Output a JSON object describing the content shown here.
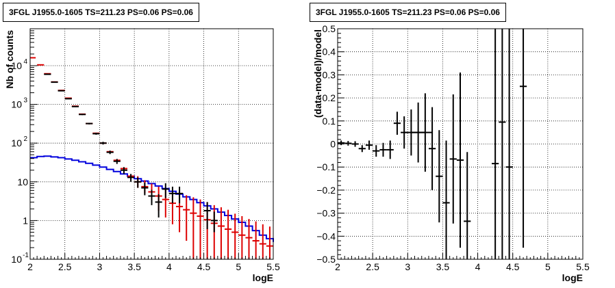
{
  "chart_data": [
    {
      "type": "line",
      "title": "3FGL J1955.0-1605 TS=211.23 PS=0.06 PS=0.06",
      "xlabel": "logE",
      "ylabel": "Nb of counts",
      "xlim": [
        2,
        5.5
      ],
      "ylim": [
        0.1,
        90000
      ],
      "yscale": "log",
      "grid": true,
      "x_ticks": [
        "2",
        "2.5",
        "3",
        "3.5",
        "4",
        "4.5",
        "5",
        "5.5"
      ],
      "y_ticks": [
        {
          "value": 0.1,
          "label": "10",
          "exp": "-1"
        },
        {
          "value": 1,
          "label": "1",
          "exp": ""
        },
        {
          "value": 10,
          "label": "10",
          "exp": ""
        },
        {
          "value": 100,
          "label": "10",
          "exp": "2"
        },
        {
          "value": 1000,
          "label": "10",
          "exp": "3"
        },
        {
          "value": 10000,
          "label": "10",
          "exp": "4"
        }
      ],
      "colors": {
        "data": "#000000",
        "model_total": "#dd0000",
        "source": "#0000dd"
      },
      "bin_edges": [
        2.0,
        2.1,
        2.2,
        2.3,
        2.4,
        2.5,
        2.6,
        2.7,
        2.8,
        2.9,
        3.0,
        3.1,
        3.2,
        3.3,
        3.4,
        3.5,
        3.6,
        3.7,
        3.8,
        3.9,
        4.0,
        4.1,
        4.2,
        4.3,
        4.4,
        4.5,
        4.6,
        4.7,
        4.8,
        4.9,
        5.0,
        5.1,
        5.2,
        5.3,
        5.4,
        5.5
      ],
      "series": [
        {
          "style": "source",
          "values": [
            42,
            45,
            46,
            44,
            42,
            39,
            36,
            33,
            30,
            27,
            24,
            21,
            18.5,
            16,
            14,
            12,
            10.5,
            9,
            7.8,
            6.7,
            5.7,
            4.8,
            4.1,
            3.5,
            2.9,
            2.4,
            2.0,
            1.65,
            1.35,
            1.1,
            0.9,
            0.72,
            0.55,
            0.42,
            0.34,
            0.28
          ]
        },
        {
          "style": "model_total",
          "x": [
            2.03,
            2.15,
            2.25,
            2.35,
            2.45,
            2.55,
            2.65,
            2.75,
            2.85,
            2.95,
            3.05,
            3.15,
            3.25,
            3.35,
            3.45,
            3.55,
            3.65,
            3.75,
            3.85,
            3.95,
            4.05,
            4.15,
            4.25,
            4.35,
            4.45,
            4.55,
            4.65,
            4.75,
            4.85,
            4.95,
            5.05,
            5.15,
            5.25,
            5.35,
            5.45
          ],
          "y": [
            16000,
            10500,
            6200,
            3800,
            2300,
            1450,
            900,
            560,
            320,
            180,
            100,
            60,
            36,
            22,
            14,
            10,
            7.5,
            5.5,
            4.3,
            3.5,
            2.8,
            2.3,
            1.9,
            1.55,
            1.3,
            1.05,
            0.85,
            0.72,
            0.6,
            0.5,
            0.42,
            0.36,
            0.3,
            0.25,
            0.22
          ],
          "err_low": [
            null,
            null,
            null,
            null,
            null,
            null,
            null,
            null,
            null,
            null,
            null,
            null,
            null,
            null,
            null,
            7,
            5,
            3,
            1.8,
            1.2,
            0.8,
            0.5,
            0.3,
            0.1,
            0.1,
            0.1,
            0.1,
            0.1,
            0.1,
            0.1,
            0.1,
            0.1,
            0.1,
            0.1,
            0.1
          ],
          "err_high": [
            null,
            null,
            null,
            null,
            null,
            null,
            null,
            null,
            null,
            null,
            null,
            null,
            null,
            null,
            null,
            14,
            11,
            9,
            7.5,
            6.5,
            5.5,
            5,
            4.5,
            4,
            3.5,
            3,
            2.5,
            2.2,
            1.9,
            1.5,
            1.3,
            1.1,
            0.95,
            0.8,
            0.7
          ]
        },
        {
          "style": "data",
          "x": [
            2.25,
            2.35,
            2.45,
            2.55,
            2.65,
            2.75,
            2.85,
            2.95,
            3.05,
            3.15,
            3.25,
            3.35,
            3.45,
            3.55,
            3.65,
            3.75,
            3.85,
            3.95,
            4.05,
            4.15,
            4.55,
            4.65
          ],
          "y": [
            6000,
            3750,
            2250,
            1400,
            880,
            550,
            320,
            175,
            100,
            58,
            34,
            20,
            13,
            10,
            7,
            4.3,
            3,
            6.5,
            5,
            5,
            1.8,
            1
          ],
          "err_low": [
            5900,
            3680,
            2200,
            1370,
            850,
            530,
            305,
            165,
            92,
            52,
            29,
            16,
            10,
            7,
            4.5,
            2.5,
            1.2,
            3.8,
            2.8,
            2.8,
            0.6,
            0.5
          ],
          "err_high": [
            6100,
            3820,
            2300,
            1440,
            910,
            570,
            335,
            185,
            108,
            64,
            39,
            24,
            16,
            13,
            9.5,
            6.2,
            4.8,
            9.2,
            7.5,
            7.5,
            3,
            1.7
          ]
        }
      ]
    },
    {
      "type": "scatter",
      "title": "3FGL J1955.0-1605 TS=211.23 PS=0.06 PS=0.06",
      "xlabel": "logE",
      "ylabel": "(data-model)/model",
      "xlim": [
        2,
        5.5
      ],
      "ylim": [
        -0.5,
        0.5
      ],
      "grid": true,
      "x_ticks": [
        "2",
        "2.5",
        "3",
        "3.5",
        "4",
        "4.5",
        "5",
        "5.5"
      ],
      "y_ticks": [
        "-0.5",
        "-0.4",
        "-0.3",
        "-0.2",
        "-0.1",
        "0",
        "0.1",
        "0.2",
        "0.3",
        "0.4",
        "0.5"
      ],
      "points": [
        {
          "x": 2.05,
          "xerr": 0.05,
          "y": 0.005,
          "err": 0.01
        },
        {
          "x": 2.15,
          "xerr": 0.05,
          "y": 0.003,
          "err": 0.01
        },
        {
          "x": 2.25,
          "xerr": 0.05,
          "y": 0.0,
          "err": 0.012
        },
        {
          "x": 2.35,
          "xerr": 0.05,
          "y": -0.02,
          "err": 0.015
        },
        {
          "x": 2.45,
          "xerr": 0.05,
          "y": -0.005,
          "err": 0.02
        },
        {
          "x": 2.55,
          "xerr": 0.05,
          "y": -0.03,
          "err": 0.025
        },
        {
          "x": 2.65,
          "xerr": 0.05,
          "y": -0.025,
          "err": 0.03
        },
        {
          "x": 2.75,
          "xerr": 0.05,
          "y": -0.025,
          "err": 0.04
        },
        {
          "x": 2.85,
          "xerr": 0.05,
          "y": 0.09,
          "err": 0.05
        },
        {
          "x": 2.95,
          "xerr": 0.05,
          "y": 0.05,
          "err": 0.07
        },
        {
          "x": 3.05,
          "xerr": 0.1,
          "y": 0.05,
          "err": 0.1
        },
        {
          "x": 3.15,
          "xerr": 0.1,
          "y": 0.05,
          "err": 0.13
        },
        {
          "x": 3.25,
          "xerr": 0.1,
          "y": 0.05,
          "err": 0.17
        },
        {
          "x": 3.35,
          "xerr": 0.05,
          "y": -0.02,
          "err": 0.18
        },
        {
          "x": 3.45,
          "xerr": 0.05,
          "y": -0.14,
          "err": 0.2
        },
        {
          "x": 3.55,
          "xerr": 0.05,
          "y": -0.255,
          "err": 0.27
        },
        {
          "x": 3.65,
          "xerr": 0.05,
          "y": -0.065,
          "err": 0.28
        },
        {
          "x": 3.75,
          "xerr": 0.05,
          "y": -0.07,
          "err": 0.38
        },
        {
          "x": 3.85,
          "xerr": 0.05,
          "y": -0.335,
          "err": 0.3
        },
        {
          "x": 4.25,
          "xerr": 0.05,
          "y": -0.085,
          "err": 0.7
        },
        {
          "x": 4.35,
          "xerr": 0.05,
          "y": 0.095,
          "err": 0.7
        },
        {
          "x": 4.45,
          "xerr": 0.05,
          "y": -0.1,
          "err": 0.7
        },
        {
          "x": 4.65,
          "xerr": 0.05,
          "y": 0.25,
          "err": 0.7
        }
      ]
    }
  ]
}
